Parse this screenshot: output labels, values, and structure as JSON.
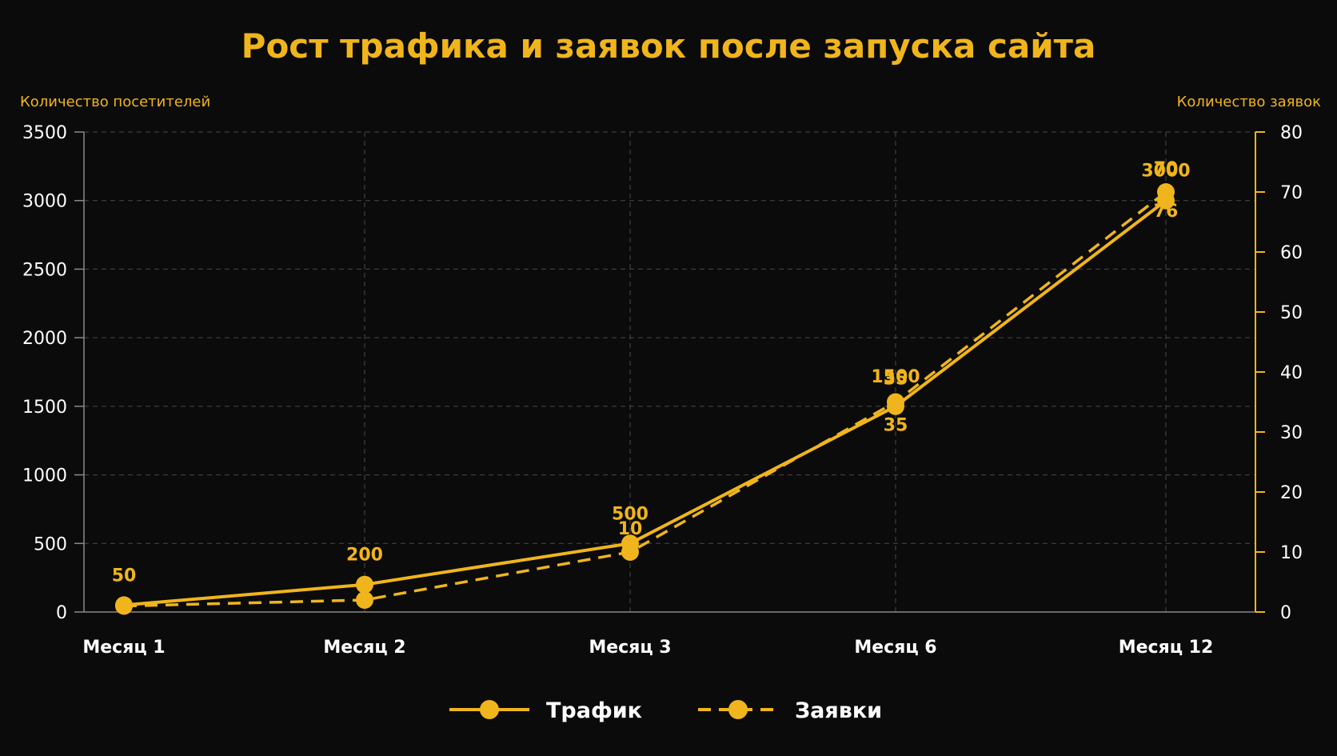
{
  "chart_data": {
    "type": "line",
    "title": "Рост трафика и заявок после запуска сайта",
    "ylabel_left": "Количество посетителей",
    "ylabel_right": "Количество заявок",
    "categories": [
      "Месяц 1",
      "Месяц 2",
      "Месяц 3",
      "Месяц 6",
      "Месяц 12"
    ],
    "ylim_left": [
      0,
      3500
    ],
    "yticks_left": [
      "0",
      "500",
      "1000",
      "1500",
      "2000",
      "2500",
      "3000",
      "3500"
    ],
    "ylim_right": [
      0,
      80
    ],
    "yticks_right": [
      "0",
      "10",
      "20",
      "30",
      "40",
      "50",
      "60",
      "70",
      "80"
    ],
    "grid": true,
    "legend_position": "bottom-center",
    "series": [
      {
        "name": "Трафик",
        "axis": "left",
        "style": "solid",
        "values": [
          50,
          200,
          500,
          1500,
          3000
        ],
        "labels": [
          "50",
          "200",
          "500",
          "1500",
          "3000"
        ]
      },
      {
        "name": "Заявки",
        "axis": "right",
        "style": "dashed",
        "values": [
          1,
          2,
          10,
          35,
          70
        ],
        "labels": [
          "",
          "",
          "10",
          "35",
          "70"
        ]
      }
    ],
    "extra_labels": [
      "35",
      "76"
    ],
    "colors": {
      "accent": "#f0b51c",
      "background": "#0b0b0b",
      "text": "#ffffff",
      "grid": "#4a4a4a"
    }
  }
}
